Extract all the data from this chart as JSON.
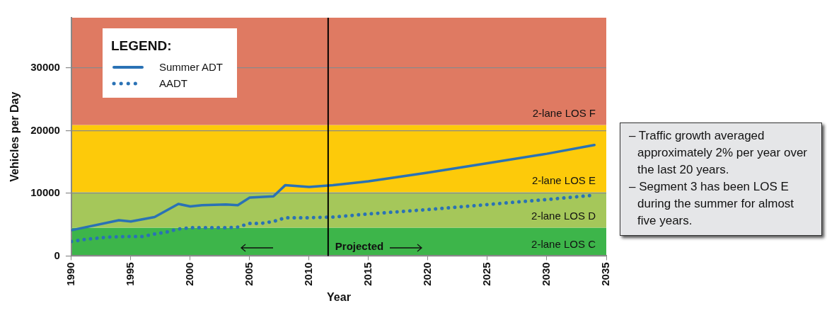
{
  "chart_data": {
    "type": "line",
    "xlabel": "Year",
    "ylabel": "Vehicles per Day",
    "legend_title": "LEGEND:",
    "legend": "top left",
    "grid": "y",
    "marker": "none",
    "xlim": [
      1990,
      2035
    ],
    "xticks": [
      1990,
      1995,
      2000,
      2005,
      2010,
      2015,
      2020,
      2025,
      2030,
      2035
    ],
    "ylim": [
      0,
      38000
    ],
    "yticks": [
      0,
      10000,
      20000,
      30000
    ],
    "series": [
      {
        "name": "Summer ADT",
        "color": "#2a72b5",
        "line_style": "solid",
        "x": [
          1990,
          1994,
          1995,
          1997,
          1999,
          2000,
          2001,
          2003,
          2004,
          2005,
          2007,
          2008,
          2010,
          2012,
          2015,
          2020,
          2025,
          2030,
          2034
        ],
        "values": [
          4100,
          5700,
          5500,
          6200,
          8300,
          7900,
          8100,
          8200,
          8100,
          9300,
          9500,
          11300,
          11000,
          11300,
          11900,
          13300,
          14800,
          16300,
          17700
        ]
      },
      {
        "name": "AADT",
        "color": "#2a72b5",
        "line_style": "dotted",
        "x": [
          1990,
          1991,
          1992,
          1993,
          1995,
          1996,
          1997,
          1998,
          1999,
          2000,
          2003,
          2004,
          2005,
          2006,
          2007,
          2008,
          2010,
          2012,
          2015,
          2020,
          2025,
          2030,
          2034
        ],
        "values": [
          2300,
          2600,
          2800,
          3000,
          3100,
          3100,
          3500,
          3800,
          4300,
          4500,
          4500,
          4600,
          5200,
          5200,
          5500,
          6100,
          6100,
          6200,
          6700,
          7400,
          8200,
          9000,
          9700
        ]
      }
    ],
    "bands": [
      {
        "axis": "y",
        "from": 0,
        "to": 4500,
        "label": "2-lane LOS C",
        "color": "#3db54a"
      },
      {
        "axis": "y",
        "from": 4500,
        "to": 10200,
        "label": "2-lane LOS D",
        "color": "#a5c75a"
      },
      {
        "axis": "y",
        "from": 10200,
        "to": 20900,
        "label": "2-lane LOS E",
        "color": "#fdca0a"
      },
      {
        "axis": "y",
        "from": 20900,
        "to": 38000,
        "label": "2-lane LOS F",
        "color": "#df7a62"
      }
    ],
    "ref_lines": [
      {
        "axis": "x",
        "value": 2011.6,
        "label": "Projected",
        "color": "#000000"
      }
    ],
    "annotations": [
      "– Traffic growth averaged approximately 2% per year over the last 20 years.",
      "– Segment 3 has been LOS E during the summer for almost five years."
    ]
  }
}
